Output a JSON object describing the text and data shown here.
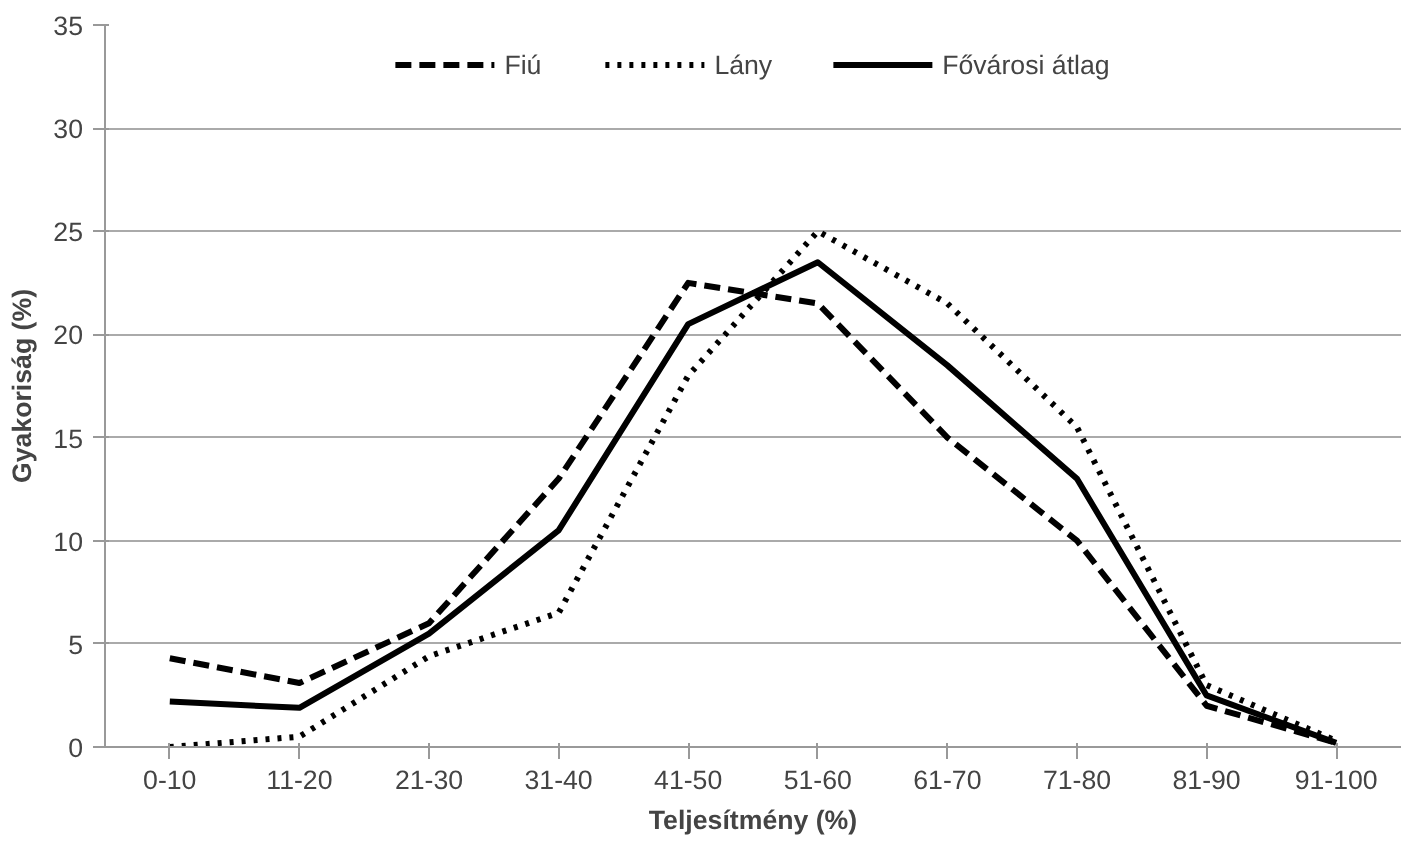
{
  "chart_data": {
    "type": "line",
    "xlabel": "Teljesítmény (%)",
    "ylabel": "Gyakoriság (%)",
    "categories": [
      "0-10",
      "11-20",
      "21-30",
      "31-40",
      "41-50",
      "51-60",
      "61-70",
      "71-80",
      "81-90",
      "91-100"
    ],
    "series": [
      {
        "name": "Fiú",
        "color": "#000000",
        "line_style": "dashed",
        "values": [
          4.3,
          3.1,
          6,
          13,
          22.5,
          21.5,
          15,
          10,
          2,
          0.2
        ]
      },
      {
        "name": "Lány",
        "color": "#000000",
        "line_style": "dotted",
        "values": [
          0,
          0.5,
          4.4,
          6.5,
          18,
          25,
          21.5,
          15.5,
          3,
          0.3
        ]
      },
      {
        "name": "Fővárosi átlag",
        "color": "#000000",
        "line_style": "solid",
        "values": [
          2.2,
          1.9,
          5.5,
          10.5,
          20.5,
          23.5,
          18.5,
          13,
          2.5,
          0.2
        ]
      }
    ],
    "ylim": [
      0,
      35
    ],
    "yticks": [
      0,
      5,
      10,
      15,
      20,
      25,
      30,
      35
    ],
    "grid": "y",
    "legend": "top",
    "marker": "none"
  }
}
